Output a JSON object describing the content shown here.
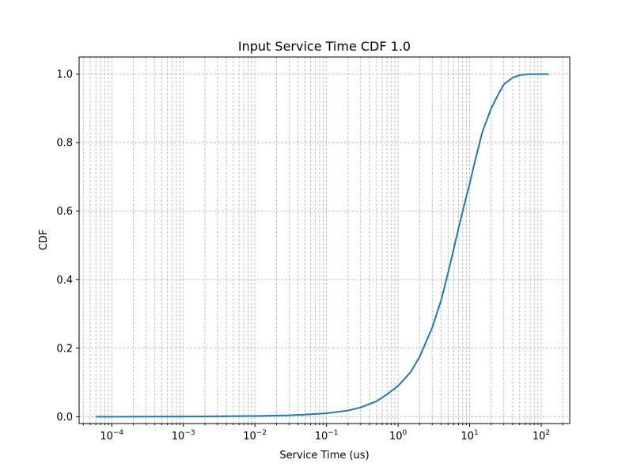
{
  "chart_data": {
    "type": "line",
    "title": "Input Service Time CDF 1.0",
    "xlabel": "Service Time (us)",
    "ylabel": "CDF",
    "xscale": "log",
    "xlim": [
      3.5e-05,
      250
    ],
    "ylim": [
      -0.02,
      1.05
    ],
    "grid": "major and minor, dashed",
    "x_ticks": [
      {
        "base": "10",
        "exp": "−4",
        "value": 0.0001
      },
      {
        "base": "10",
        "exp": "−3",
        "value": 0.001
      },
      {
        "base": "10",
        "exp": "−2",
        "value": 0.01
      },
      {
        "base": "10",
        "exp": "−1",
        "value": 0.1
      },
      {
        "base": "10",
        "exp": "0",
        "value": 1
      },
      {
        "base": "10",
        "exp": "1",
        "value": 10
      },
      {
        "base": "10",
        "exp": "2",
        "value": 100
      }
    ],
    "y_ticks": [
      "0.0",
      "0.2",
      "0.4",
      "0.6",
      "0.8",
      "1.0"
    ],
    "color": "#1f77b4",
    "series": [
      {
        "x": [
          6e-05,
          0.0001,
          0.001,
          0.01,
          0.03,
          0.05,
          0.1,
          0.2,
          0.3,
          0.5,
          0.7,
          1,
          1.5,
          2,
          3,
          4,
          5,
          6,
          7,
          8,
          10,
          12,
          15,
          20,
          25,
          30,
          40,
          50,
          70,
          100,
          128
        ],
        "y": [
          0.0,
          0.0,
          0.0005,
          0.002,
          0.004,
          0.006,
          0.01,
          0.018,
          0.027,
          0.045,
          0.065,
          0.09,
          0.13,
          0.175,
          0.26,
          0.34,
          0.42,
          0.49,
          0.55,
          0.6,
          0.68,
          0.75,
          0.83,
          0.9,
          0.94,
          0.97,
          0.99,
          0.997,
          1.0,
          1.0,
          1.0
        ]
      }
    ]
  }
}
